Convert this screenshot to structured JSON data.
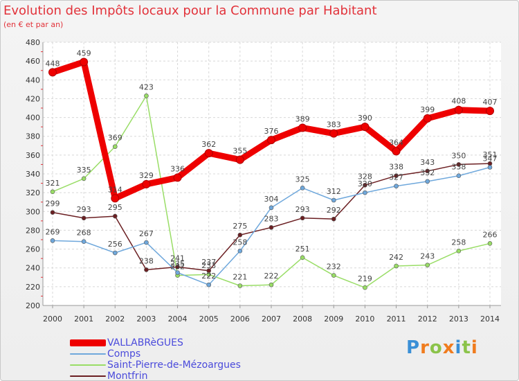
{
  "chart_data": {
    "type": "line",
    "title": "Evolution des Impôts locaux pour la Commune par Habitant",
    "subtitle": "(en € et par an)",
    "categories": [
      "2000",
      "2001",
      "2002",
      "2003",
      "2004",
      "2005",
      "2006",
      "2007",
      "2008",
      "2009",
      "2010",
      "2011",
      "2012",
      "2013",
      "2014"
    ],
    "ylim": [
      200,
      480
    ],
    "yticks": [
      200,
      220,
      240,
      260,
      280,
      300,
      320,
      340,
      360,
      380,
      400,
      420,
      440,
      460,
      480
    ],
    "grid": true,
    "legend_position": "bottom-left",
    "series": [
      {
        "name": "VALLABRèGUES",
        "color": "#ee0000",
        "width": 9,
        "values": [
          448,
          459,
          314,
          329,
          336,
          362,
          355,
          376,
          389,
          383,
          390,
          364,
          399,
          408,
          407
        ]
      },
      {
        "name": "Comps",
        "color": "#6fa8dc",
        "width": 1.5,
        "values": [
          269,
          268,
          256,
          267,
          235,
          222,
          258,
          304,
          325,
          312,
          320,
          327,
          332,
          338,
          347
        ]
      },
      {
        "name": "Saint-Pierre-de-Mézoargues",
        "color": "#99dd66",
        "width": 1.5,
        "values": [
          321,
          335,
          369,
          423,
          232,
          233,
          221,
          222,
          251,
          232,
          219,
          242,
          243,
          258,
          266
        ]
      },
      {
        "name": "Montfrin",
        "color": "#6b1f22",
        "width": 1.5,
        "values": [
          299,
          293,
          295,
          238,
          241,
          237,
          275,
          283,
          293,
          292,
          328,
          338,
          343,
          350,
          351
        ]
      }
    ]
  },
  "logo": {
    "letters": [
      "P",
      "r",
      "o",
      "x",
      "i",
      "t",
      "i"
    ],
    "colors": [
      "#3a8fd6",
      "#f07c1e",
      "#8bc34a",
      "#f07c1e",
      "#3a8fd6",
      "#8bc34a",
      "#f07c1e"
    ]
  }
}
